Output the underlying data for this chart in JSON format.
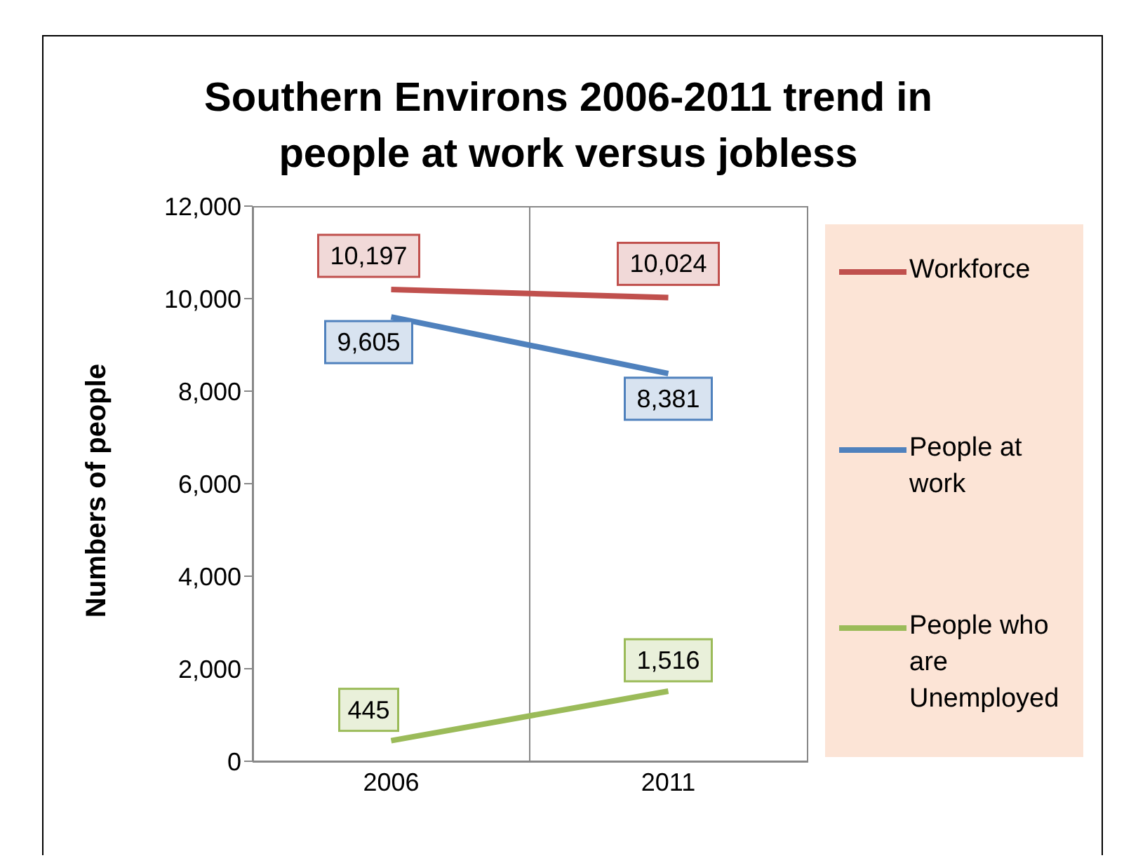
{
  "chart_data": {
    "type": "line",
    "title": "Southern Environs 2006-2011 trend in people at work versus jobless",
    "ylabel": "Numbers of people",
    "categories": [
      "2006",
      "2011"
    ],
    "series": [
      {
        "name": "Workforce",
        "color": "#c0504d",
        "values": [
          10197,
          10024
        ],
        "value_labels": [
          "10,197",
          "10,024"
        ]
      },
      {
        "name": "People at work",
        "color": "#4f81bd",
        "values": [
          9605,
          8381
        ],
        "value_labels": [
          "9,605",
          "8,381"
        ]
      },
      {
        "name": "People who are Unemployed",
        "color": "#9bbb59",
        "values": [
          445,
          1516
        ],
        "value_labels": [
          "445",
          "1,516"
        ]
      }
    ],
    "ylim": [
      0,
      12000
    ],
    "yticks": [
      {
        "value": 0,
        "label": "0"
      },
      {
        "value": 2000,
        "label": "2,000"
      },
      {
        "value": 4000,
        "label": "4,000"
      },
      {
        "value": 6000,
        "label": "6,000"
      },
      {
        "value": 8000,
        "label": "8,000"
      },
      {
        "value": 10000,
        "label": "10,000"
      },
      {
        "value": 12000,
        "label": "12,000"
      }
    ],
    "grid": "x",
    "legend": "right",
    "marker": "none",
    "line_style": "solid"
  }
}
